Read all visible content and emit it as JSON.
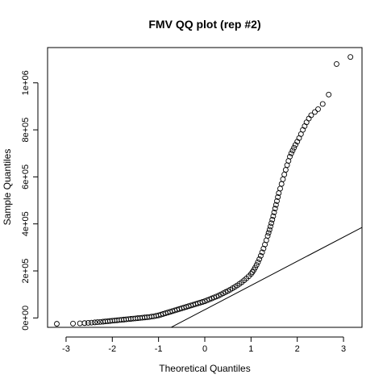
{
  "chart_data": {
    "type": "scatter",
    "title": "FMV QQ plot (rep #2)",
    "xlabel": "Theoretical Quantiles",
    "ylabel": "Sample Quantiles",
    "xlim": [
      -3.4,
      3.4
    ],
    "ylim": [
      -40000,
      1150000
    ],
    "x_ticks": [
      -3,
      -2,
      -1,
      0,
      1,
      2,
      3
    ],
    "x_tick_labels": [
      "-3",
      "-2",
      "-1",
      "0",
      "1",
      "2",
      "3"
    ],
    "y_ticks": [
      0,
      200000,
      400000,
      600000,
      800000,
      1000000
    ],
    "y_tick_labels": [
      "0e+00",
      "2e+05",
      "4e+05",
      "6e+05",
      "8e+05",
      "1e+06"
    ],
    "grid": false,
    "legend": "none",
    "reference_line": {
      "slope": 103000,
      "intercept": 35000
    },
    "points": {
      "x": [
        -3.2,
        -2.85,
        -2.7,
        -2.6,
        -2.52,
        -2.45,
        -2.38,
        -2.32,
        -2.26,
        -2.2,
        -2.15,
        -2.1,
        -2.05,
        -2.0,
        -1.95,
        -1.9,
        -1.85,
        -1.8,
        -1.75,
        -1.7,
        -1.65,
        -1.6,
        -1.55,
        -1.5,
        -1.45,
        -1.4,
        -1.35,
        -1.3,
        -1.25,
        -1.2,
        -1.15,
        -1.1,
        -1.05,
        -1.0,
        -0.95,
        -0.9,
        -0.85,
        -0.8,
        -0.75,
        -0.7,
        -0.65,
        -0.6,
        -0.55,
        -0.5,
        -0.45,
        -0.4,
        -0.35,
        -0.3,
        -0.25,
        -0.2,
        -0.15,
        -0.1,
        -0.05,
        0.0,
        0.05,
        0.1,
        0.15,
        0.2,
        0.25,
        0.3,
        0.35,
        0.4,
        0.45,
        0.5,
        0.55,
        0.6,
        0.65,
        0.7,
        0.75,
        0.8,
        0.85,
        0.9,
        0.95,
        1.0,
        1.03,
        1.06,
        1.09,
        1.12,
        1.15,
        1.18,
        1.21,
        1.24,
        1.27,
        1.3,
        1.33,
        1.36,
        1.38,
        1.4,
        1.42,
        1.44,
        1.46,
        1.48,
        1.5,
        1.52,
        1.54,
        1.56,
        1.58,
        1.6,
        1.63,
        1.66,
        1.69,
        1.72,
        1.75,
        1.78,
        1.81,
        1.84,
        1.87,
        1.9,
        1.93,
        1.96,
        2.0,
        2.04,
        2.08,
        2.12,
        2.16,
        2.2,
        2.25,
        2.3,
        2.38,
        2.45,
        2.55,
        2.68,
        2.85,
        3.15
      ],
      "y": [
        -25000,
        -24000,
        -23000,
        -22000,
        -21000,
        -20000,
        -19000,
        -18000,
        -17000,
        -16000,
        -15000,
        -14000,
        -13000,
        -12000,
        -11000,
        -10000,
        -9000,
        -8000,
        -7000,
        -6000,
        -5000,
        -4000,
        -3000,
        -2000,
        -1000,
        0,
        1000,
        2000,
        3000,
        4000,
        5500,
        7000,
        9000,
        11000,
        14000,
        17000,
        20000,
        23000,
        26000,
        29000,
        32000,
        35000,
        38000,
        41000,
        44000,
        47000,
        50000,
        53000,
        56000,
        59000,
        62000,
        65000,
        68000,
        71000,
        75000,
        79000,
        83000,
        87000,
        91000,
        95000,
        100000,
        105000,
        110000,
        115000,
        120000,
        126000,
        132000,
        138000,
        145000,
        152000,
        160000,
        168000,
        177000,
        187000,
        195000,
        204000,
        214000,
        225000,
        237000,
        250000,
        264000,
        279000,
        295000,
        312000,
        330000,
        349000,
        362000,
        375000,
        389000,
        403000,
        418000,
        433000,
        449000,
        465000,
        481000,
        497000,
        514000,
        531000,
        550000,
        570000,
        590000,
        610000,
        630000,
        650000,
        668000,
        686000,
        700000,
        712000,
        724000,
        736000,
        750000,
        765000,
        782000,
        800000,
        816000,
        832000,
        848000,
        862000,
        876000,
        888000,
        910000,
        950000,
        1080000,
        1110000
      ]
    }
  }
}
